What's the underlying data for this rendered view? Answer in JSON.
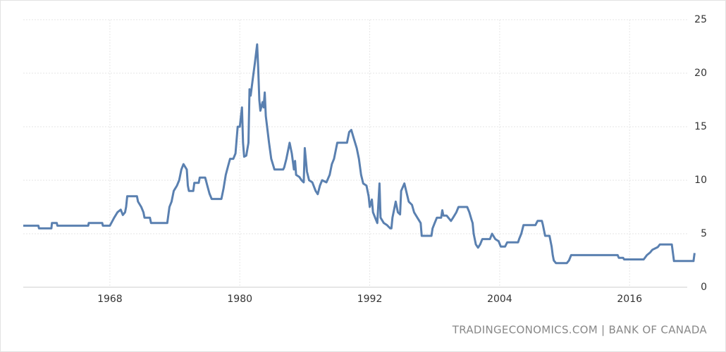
{
  "chart_data": {
    "type": "line",
    "source": "TRADINGECONOMICS.COM | BANK OF CANADA",
    "xlim": [
      1960,
      2022.3
    ],
    "xticks": [
      1968,
      1980,
      1992,
      2004,
      2016
    ],
    "ylim": [
      0,
      25
    ],
    "yticks": [
      0,
      5,
      10,
      15,
      20,
      25
    ],
    "grid": true,
    "x": [
      1960.0,
      1961.4,
      1961.45,
      1962.6,
      1962.65,
      1963.1,
      1963.15,
      1966.0,
      1966.05,
      1967.3,
      1967.35,
      1968.0,
      1968.4,
      1968.7,
      1969.0,
      1969.2,
      1969.4,
      1969.5,
      1969.6,
      1970.5,
      1970.6,
      1970.9,
      1971.1,
      1971.2,
      1971.7,
      1971.8,
      1973.3,
      1973.5,
      1973.7,
      1973.9,
      1974.2,
      1974.4,
      1974.6,
      1974.8,
      1975.1,
      1975.2,
      1975.3,
      1975.7,
      1975.8,
      1976.2,
      1976.3,
      1976.8,
      1977.0,
      1977.2,
      1977.4,
      1978.3,
      1978.5,
      1978.7,
      1978.9,
      1979.1,
      1979.4,
      1979.6,
      1979.8,
      1980.0,
      1980.2,
      1980.3,
      1980.4,
      1980.6,
      1980.8,
      1980.9,
      1981.0,
      1981.2,
      1981.4,
      1981.6,
      1981.7,
      1981.8,
      1981.9,
      1982.1,
      1982.2,
      1982.3,
      1982.4,
      1982.7,
      1982.9,
      1983.2,
      1984.0,
      1984.1,
      1984.3,
      1984.6,
      1984.8,
      1985.0,
      1985.1,
      1985.2,
      1985.5,
      1985.7,
      1985.9,
      1986.0,
      1986.2,
      1986.4,
      1986.7,
      1987.0,
      1987.2,
      1987.4,
      1987.6,
      1988.0,
      1988.3,
      1988.5,
      1988.7,
      1989.0,
      1989.9,
      1990.1,
      1990.3,
      1990.5,
      1990.8,
      1991.0,
      1991.2,
      1991.4,
      1991.7,
      1991.9,
      1992.0,
      1992.2,
      1992.3,
      1992.5,
      1992.7,
      1992.9,
      1993.0,
      1993.3,
      1993.6,
      1993.9,
      1994.0,
      1994.1,
      1994.4,
      1994.6,
      1994.8,
      1994.9,
      1995.2,
      1995.6,
      1995.9,
      1996.1,
      1996.4,
      1996.7,
      1996.8,
      1997.7,
      1997.8,
      1998.0,
      1998.2,
      1998.6,
      1998.7,
      1998.8,
      1999.1,
      1999.5,
      1999.7,
      2000.0,
      2000.2,
      2001.0,
      2001.2,
      2001.4,
      2001.5,
      2001.6,
      2001.8,
      2002.0,
      2002.2,
      2002.4,
      2003.1,
      2003.3,
      2003.6,
      2003.9,
      2004.1,
      2004.5,
      2004.7,
      2005.7,
      2005.8,
      2006.0,
      2006.2,
      2007.3,
      2007.5,
      2007.9,
      2008.0,
      2008.2,
      2008.6,
      2008.8,
      2008.9,
      2009.0,
      2009.2,
      2010.2,
      2010.4,
      2010.6,
      2014.9,
      2015.0,
      2015.4,
      2015.5,
      2017.3,
      2017.6,
      2017.9,
      2018.1,
      2018.6,
      2018.8,
      2019.9,
      2020.1,
      2021.9,
      2022.0
    ],
    "series": [
      {
        "color": "#5a80b0",
        "values": [
          5.75,
          5.75,
          5.5,
          5.5,
          6.0,
          6.0,
          5.75,
          5.75,
          6.0,
          6.0,
          5.75,
          5.75,
          6.5,
          7.0,
          7.25,
          6.75,
          7.0,
          7.5,
          8.5,
          8.5,
          8.0,
          7.5,
          7.0,
          6.5,
          6.5,
          6.0,
          6.0,
          7.5,
          8.0,
          9.0,
          9.5,
          10.0,
          11.0,
          11.5,
          11.0,
          9.5,
          9.0,
          9.0,
          9.75,
          9.75,
          10.25,
          10.25,
          9.5,
          8.75,
          8.25,
          8.25,
          9.25,
          10.5,
          11.25,
          12.0,
          12.0,
          12.5,
          15.0,
          15.0,
          16.8,
          13.5,
          12.2,
          12.3,
          13.5,
          18.5,
          17.9,
          19.5,
          21.0,
          22.7,
          20.5,
          17.5,
          16.5,
          17.3,
          16.8,
          18.2,
          16.0,
          13.5,
          12.0,
          11.0,
          11.0,
          11.2,
          12.0,
          13.5,
          12.5,
          11.0,
          11.8,
          10.5,
          10.3,
          10.0,
          9.8,
          13.0,
          10.8,
          10.0,
          9.8,
          9.0,
          8.7,
          9.5,
          10.0,
          9.8,
          10.5,
          11.5,
          12.0,
          13.5,
          13.5,
          14.5,
          14.7,
          14.0,
          13.0,
          12.0,
          10.5,
          9.7,
          9.5,
          8.5,
          7.5,
          8.2,
          7.0,
          6.5,
          6.0,
          9.7,
          6.5,
          6.0,
          5.8,
          5.5,
          5.5,
          6.5,
          8.0,
          7.0,
          6.8,
          9.0,
          9.7,
          8.0,
          7.7,
          7.0,
          6.5,
          6.0,
          4.8,
          4.8,
          5.5,
          6.0,
          6.5,
          6.5,
          7.2,
          6.7,
          6.7,
          6.2,
          6.5,
          7.0,
          7.5,
          7.5,
          7.0,
          6.3,
          6.0,
          5.0,
          4.0,
          3.7,
          4.0,
          4.5,
          4.5,
          5.0,
          4.5,
          4.3,
          3.8,
          3.8,
          4.2,
          4.2,
          4.5,
          5.0,
          5.8,
          5.8,
          6.2,
          6.2,
          5.8,
          4.8,
          4.8,
          3.8,
          3.0,
          2.5,
          2.25,
          2.25,
          2.5,
          3.0,
          3.0,
          2.75,
          2.75,
          2.6,
          2.6,
          3.0,
          3.25,
          3.5,
          3.75,
          4.0,
          4.0,
          2.45,
          2.45,
          3.2
        ]
      }
    ]
  }
}
